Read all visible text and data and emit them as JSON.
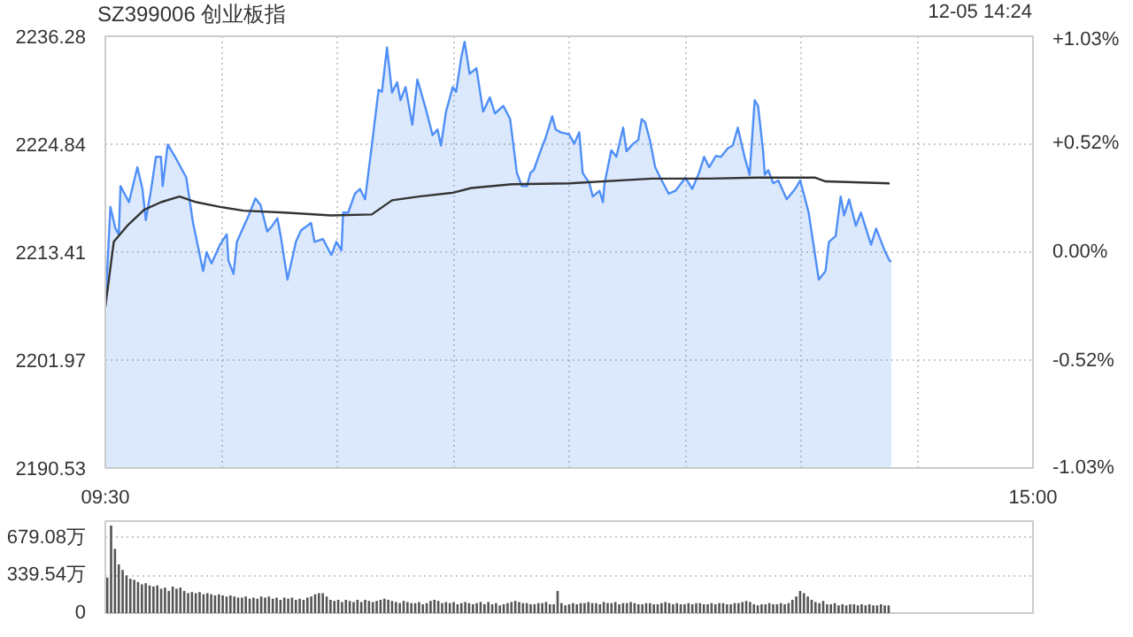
{
  "chart_data": [
    {
      "type": "line",
      "title": "SZ399006 创业板指",
      "annotations": [
        "12-05 14:24"
      ],
      "xlim": [
        9.5,
        15
      ],
      "xticks": [
        {
          "value": 9.5,
          "label": "09:30"
        },
        {
          "value": 10.1875,
          "label": null
        },
        {
          "value": 10.875,
          "label": null
        },
        {
          "value": 11.5625,
          "label": null
        },
        {
          "value": 12.25,
          "label": null
        },
        {
          "value": 12.9375,
          "label": null
        },
        {
          "value": 13.625,
          "label": null
        },
        {
          "value": 14.3125,
          "label": null
        },
        {
          "value": 15,
          "label": "15:00"
        }
      ],
      "ylim": [
        2190.53,
        2236.28
      ],
      "yticks": [
        2190.53,
        2201.97,
        2213.41,
        2224.84,
        2236.28
      ],
      "y2lim": [
        -1.03,
        1.03
      ],
      "y2ticks": [
        {
          "value": -1.03,
          "label": "-1.03%"
        },
        {
          "value": -0.52,
          "label": "-0.52%"
        },
        {
          "value": 0,
          "label": "0.00%"
        },
        {
          "value": 0.52,
          "label": "+0.52%"
        },
        {
          "value": 1.03,
          "label": "+1.03%"
        }
      ],
      "grid": true,
      "series": [
        {
          "type": "area",
          "color": "#4f8ff7",
          "x": [
            9.5,
            9.53,
            9.56,
            9.58,
            9.59,
            9.64,
            9.69,
            9.72,
            9.74,
            9.77,
            9.8,
            9.83,
            9.84,
            9.87,
            9.92,
            9.98,
            9.99,
            10.02,
            10.08,
            10.1,
            10.13,
            10.18,
            10.22,
            10.23,
            10.26,
            10.28,
            10.35,
            10.39,
            10.42,
            10.46,
            10.49,
            10.52,
            10.54,
            10.58,
            10.63,
            10.66,
            10.72,
            10.74,
            10.79,
            10.84,
            10.87,
            10.9,
            10.91,
            10.94,
            10.98,
            11.01,
            11.04,
            11.08,
            11.12,
            11.14,
            11.17,
            11.2,
            11.23,
            11.25,
            11.28,
            11.32,
            11.35,
            11.4,
            11.44,
            11.47,
            11.49,
            11.52,
            11.56,
            11.58,
            11.61,
            11.63,
            11.66,
            11.7,
            11.74,
            11.78,
            11.81,
            11.86,
            11.9,
            11.94,
            11.97,
            12.0,
            12.02,
            12.04,
            12.08,
            12.11,
            12.15,
            12.17,
            12.2,
            12.25,
            12.28,
            12.31,
            12.33,
            12.37,
            12.39,
            12.43,
            12.45,
            12.46,
            12.5,
            12.53,
            12.57,
            12.59,
            12.63,
            12.66,
            12.68,
            12.7,
            12.73,
            12.76,
            12.79,
            12.84,
            12.88,
            12.94,
            12.98,
            13.02,
            13.05,
            13.08,
            13.12,
            13.15,
            13.19,
            13.22,
            13.25,
            13.29,
            13.32,
            13.35,
            13.37,
            13.4,
            13.41,
            13.43,
            13.46,
            13.49,
            13.54,
            13.59,
            13.62,
            13.67,
            13.73,
            13.77,
            13.79,
            13.83,
            13.86,
            13.88,
            13.91,
            13.95,
            13.98,
            14.04,
            14.07,
            14.12,
            14.15,
            14.16
          ],
          "values": [
            2207.6,
            2218.2,
            2215.9,
            2215.3,
            2220.4,
            2218.7,
            2222.4,
            2220.1,
            2216.8,
            2219.9,
            2223.5,
            2223.5,
            2220.4,
            2224.8,
            2223.3,
            2221.3,
            2220.1,
            2216.5,
            2211.4,
            2213.4,
            2212.2,
            2214.2,
            2215.3,
            2212.5,
            2211.1,
            2214.5,
            2217.3,
            2219.1,
            2218.4,
            2215.6,
            2216.2,
            2217.0,
            2215.1,
            2210.5,
            2214.5,
            2215.7,
            2216.5,
            2214.5,
            2214.8,
            2213.1,
            2214.5,
            2213.6,
            2217.6,
            2217.6,
            2219.6,
            2220.1,
            2219.0,
            2224.7,
            2230.6,
            2230.4,
            2235.1,
            2230.3,
            2231.4,
            2229.5,
            2230.9,
            2226.9,
            2231.7,
            2228.6,
            2225.8,
            2226.4,
            2224.7,
            2228.3,
            2230.9,
            2230.4,
            2234.0,
            2235.7,
            2232.3,
            2232.9,
            2228.3,
            2229.8,
            2228.1,
            2228.9,
            2227.5,
            2221.8,
            2220.4,
            2220.4,
            2221.8,
            2222.1,
            2224.1,
            2225.5,
            2227.8,
            2226.4,
            2226.1,
            2225.9,
            2224.9,
            2226.1,
            2221.8,
            2220.7,
            2219.3,
            2219.9,
            2218.7,
            2220.7,
            2224.2,
            2223.5,
            2226.6,
            2224.1,
            2224.9,
            2225.3,
            2227.5,
            2227.2,
            2225.2,
            2222.4,
            2221.3,
            2219.6,
            2219.9,
            2221.3,
            2220.1,
            2221.8,
            2223.5,
            2222.4,
            2223.6,
            2223.5,
            2224.4,
            2224.7,
            2226.6,
            2223.5,
            2221.6,
            2229.5,
            2228.9,
            2224.1,
            2221.6,
            2222.1,
            2220.7,
            2221.0,
            2219.0,
            2220.1,
            2221.0,
            2217.6,
            2210.5,
            2211.4,
            2214.5,
            2215.1,
            2219.3,
            2217.3,
            2219.0,
            2216.2,
            2217.6,
            2214.2,
            2215.9,
            2213.6,
            2212.5,
            2212.4
          ]
        },
        {
          "type": "line",
          "color": "#333333",
          "x": [
            9.5,
            9.55,
            9.63,
            9.73,
            9.83,
            9.94,
            10.04,
            10.18,
            10.32,
            10.56,
            10.84,
            11.08,
            11.2,
            11.36,
            11.56,
            11.67,
            11.91,
            12.25,
            12.74,
            13.08,
            13.36,
            13.71,
            13.77,
            14.15
          ],
          "values": [
            2207.6,
            2214.5,
            2216.2,
            2217.9,
            2218.7,
            2219.3,
            2218.7,
            2218.2,
            2217.8,
            2217.6,
            2217.3,
            2217.4,
            2218.9,
            2219.3,
            2219.7,
            2220.2,
            2220.6,
            2220.7,
            2221.2,
            2221.2,
            2221.3,
            2221.3,
            2220.9,
            2220.7
          ]
        }
      ]
    },
    {
      "type": "bar",
      "ylim": [
        0,
        830
      ],
      "yticks": [
        0,
        {
          "value": 339.54,
          "label": "339.54万"
        },
        {
          "value": 679.08,
          "label": "679.08万"
        }
      ],
      "grid": "y",
      "categories": [
        null,
        null,
        null,
        null,
        null,
        null,
        null,
        null,
        null,
        null,
        null,
        null,
        null,
        null,
        null,
        null,
        null,
        null,
        null,
        null,
        null,
        null,
        null,
        null,
        null,
        null,
        null,
        null,
        null,
        null,
        null,
        null,
        null,
        null,
        null,
        null,
        null,
        null,
        null,
        null,
        null,
        null,
        null,
        null,
        null,
        null,
        null,
        null,
        null,
        null,
        null,
        null,
        null,
        null,
        null,
        null,
        null,
        null,
        null,
        null,
        null,
        null,
        null,
        null,
        null,
        null,
        null,
        null,
        null,
        null,
        null,
        null,
        null,
        null,
        null,
        null,
        null,
        null,
        null,
        null,
        null,
        null,
        null,
        null,
        null,
        null,
        null,
        null,
        null,
        null,
        null,
        null,
        null,
        null,
        null,
        null,
        null,
        null,
        null,
        null,
        null,
        null,
        null,
        null,
        null,
        null,
        null,
        null,
        null,
        null,
        null,
        null,
        null,
        null,
        null,
        null,
        null,
        null,
        null,
        null,
        null,
        null,
        null,
        null,
        null,
        null,
        null,
        null,
        null,
        null,
        null,
        null,
        null,
        null,
        null,
        null,
        null,
        null,
        null,
        null,
        null,
        null,
        null,
        null,
        null,
        null,
        null,
        null,
        null,
        null,
        null,
        null,
        null,
        null,
        null,
        null,
        null,
        null,
        null,
        null,
        null,
        null,
        null,
        null,
        null,
        null,
        null,
        null,
        null,
        null,
        null,
        null,
        null,
        null,
        null,
        null,
        null,
        null,
        null,
        null,
        null,
        null,
        null,
        null,
        null,
        null,
        null,
        null,
        null,
        null,
        null,
        null,
        null,
        null,
        null,
        null,
        null,
        null,
        null,
        null,
        null,
        null,
        null,
        null,
        null,
        null,
        null,
        null,
        null,
        null,
        null,
        null,
        null,
        null,
        null,
        null,
        null,
        null,
        null,
        null,
        null,
        null,
        null,
        null,
        null,
        null,
        null,
        null,
        null,
        null,
        null,
        null,
        null,
        null,
        null,
        null,
        null,
        null,
        null,
        null,
        null
      ],
      "series": [
        {
          "color": "#555555",
          "values": [
            320,
            790,
            580,
            440,
            390,
            340,
            310,
            300,
            280,
            260,
            270,
            250,
            240,
            250,
            220,
            230,
            200,
            240,
            220,
            230,
            200,
            180,
            190,
            180,
            190,
            170,
            180,
            170,
            160,
            170,
            160,
            150,
            160,
            150,
            140,
            140,
            150,
            130,
            140,
            130,
            150,
            140,
            150,
            130,
            140,
            120,
            140,
            130,
            140,
            120,
            130,
            120,
            140,
            150,
            170,
            180,
            180,
            150,
            120,
            110,
            120,
            100,
            120,
            110,
            100,
            120,
            100,
            120,
            110,
            100,
            110,
            120,
            130,
            120,
            110,
            100,
            90,
            110,
            100,
            90,
            90,
            100,
            80,
            90,
            110,
            120,
            110,
            90,
            100,
            90,
            100,
            80,
            90,
            100,
            90,
            80,
            90,
            100,
            80,
            100,
            80,
            90,
            70,
            80,
            90,
            100,
            110,
            100,
            90,
            90,
            80,
            80,
            90,
            90,
            100,
            80,
            80,
            200,
            90,
            70,
            80,
            90,
            80,
            90,
            90,
            100,
            90,
            90,
            80,
            100,
            90,
            90,
            100,
            80,
            90,
            90,
            100,
            90,
            80,
            80,
            90,
            90,
            80,
            80,
            90,
            100,
            90,
            80,
            90,
            80,
            80,
            90,
            80,
            90,
            90,
            80,
            80,
            90,
            80,
            90,
            90,
            80,
            80,
            90,
            90,
            100,
            110,
            100,
            80,
            70,
            80,
            80,
            90,
            80,
            80,
            90,
            80,
            90,
            120,
            150,
            200,
            180,
            150,
            120,
            100,
            90,
            110,
            80,
            80,
            90,
            70,
            80,
            70,
            80,
            80,
            70,
            80,
            70,
            80,
            70,
            70,
            80,
            70,
            70,
            null,
            null,
            null,
            null,
            null,
            null,
            null,
            null,
            null,
            null,
            null,
            null,
            null,
            null,
            null,
            null,
            null,
            null,
            null,
            null,
            null,
            null,
            null,
            null,
            null,
            null,
            null,
            null,
            null,
            null,
            null,
            null,
            null,
            null,
            null,
            null,
            null
          ]
        }
      ]
    }
  ]
}
